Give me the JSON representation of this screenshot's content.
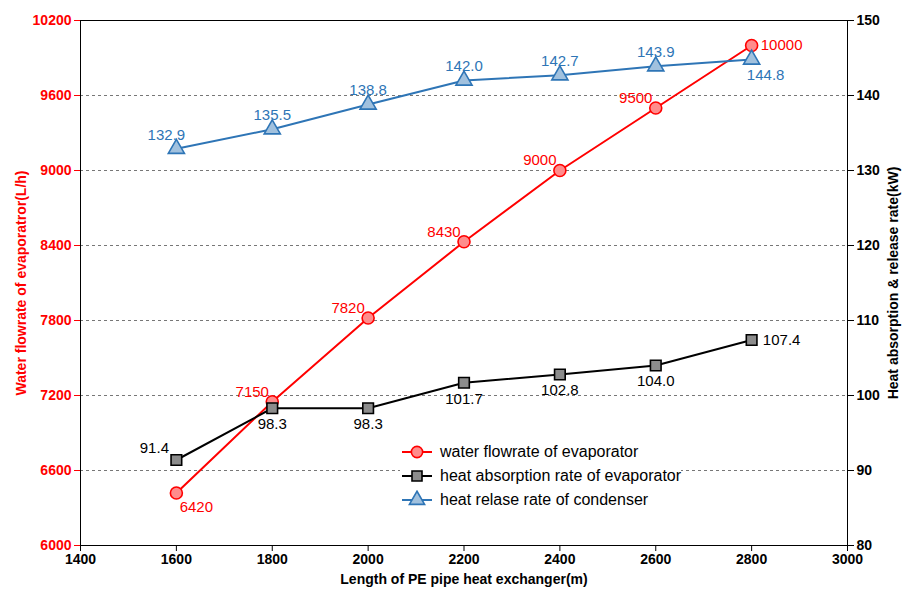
{
  "chart_data": {
    "type": "line",
    "x_label": "Length of PE pipe heat exchanger(m)",
    "y_label": "Water flowrate of evaporatror(L/h)",
    "y2_label": "Heat absorption & release rate(kW)",
    "x": [
      1600,
      1800,
      2000,
      2200,
      2400,
      2600,
      2800
    ],
    "xlim": [
      1400,
      3000
    ],
    "xticks": [
      1400,
      1600,
      1800,
      2000,
      2200,
      2400,
      2600,
      2800,
      3000
    ],
    "ylim": [
      6000,
      10200
    ],
    "yticks": [
      6000,
      6600,
      7200,
      7800,
      8400,
      9000,
      9600,
      10200
    ],
    "y2lim": [
      80,
      150
    ],
    "y2ticks": [
      80,
      90,
      100,
      110,
      120,
      130,
      140,
      150
    ],
    "grid": true,
    "legend": "lower right",
    "data_labels": true,
    "series": [
      {
        "name": "water flowrate of evaporator",
        "color": "#ff0000",
        "marker": "circle",
        "values": [
          6420,
          7150,
          7820,
          8430,
          9000,
          9500,
          10000
        ]
      },
      {
        "name": "heat absorption rate of evaporator",
        "color": "#000000",
        "marker": "square",
        "axis": "y2",
        "values": [
          91.4,
          98.3,
          98.3,
          101.7,
          102.8,
          104.0,
          107.4
        ],
        "value_labels": [
          "91.4",
          "98.3",
          "98.3",
          "101.7",
          "102.8",
          "104.0",
          "107.4"
        ]
      },
      {
        "name": "heat relase rate of condenser",
        "color": "#2e75b6",
        "marker": "triangle",
        "axis": "y2",
        "values": [
          132.9,
          135.5,
          138.8,
          142.0,
          142.7,
          143.9,
          144.8
        ],
        "value_labels": [
          "132.9",
          "135.5",
          "138.8",
          "142.0",
          "142.7",
          "143.9",
          "144.8"
        ]
      }
    ]
  }
}
